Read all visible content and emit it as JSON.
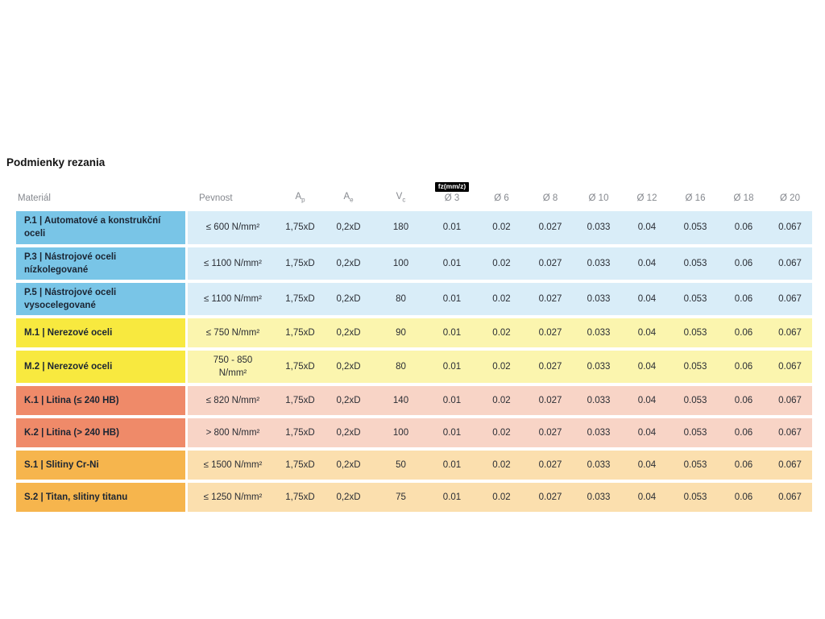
{
  "title": "Podmienky rezania",
  "colors": {
    "title_text": "#141414",
    "header_text": "#85888e",
    "material_text": "#1b2533",
    "value_text": "#2a2d34",
    "badge_bg": "#000000",
    "p_strong": "#79c5e7",
    "p_light": "#d9edf8",
    "m_strong": "#f8e93f",
    "m_light": "#fbf5ae",
    "k_strong": "#ef8a69",
    "k_light": "#f8d4c6",
    "s_strong": "#f6b54d",
    "s_light": "#fbdfae"
  },
  "table": {
    "headers": {
      "material": "Materiál",
      "pevnost": "Pevnost",
      "ap": {
        "base": "A",
        "sub": "p"
      },
      "ae": {
        "base": "A",
        "sub": "e"
      },
      "vc": {
        "base": "V",
        "sub": "c"
      },
      "fz_badge": "fz(mm/z)",
      "diameters": [
        "Ø 3",
        "Ø 6",
        "Ø 8",
        "Ø 10",
        "Ø 12",
        "Ø 16",
        "Ø 18",
        "Ø 20"
      ]
    },
    "rows": [
      {
        "group": "p",
        "material": "P.1 | Automatové a konstrukční oceli",
        "pevnost": "≤ 600 N/mm²",
        "ap": "1,75xD",
        "ae": "0,2xD",
        "vc": "180",
        "fz": [
          "0.01",
          "0.02",
          "0.027",
          "0.033",
          "0.04",
          "0.053",
          "0.06",
          "0.067"
        ]
      },
      {
        "group": "p",
        "material": "P.3 | Nástrojové oceli nízkolegované",
        "pevnost": "≤ 1100 N/mm²",
        "ap": "1,75xD",
        "ae": "0,2xD",
        "vc": "100",
        "fz": [
          "0.01",
          "0.02",
          "0.027",
          "0.033",
          "0.04",
          "0.053",
          "0.06",
          "0.067"
        ]
      },
      {
        "group": "p",
        "material": "P.5 | Nástrojové oceli vysocelegované",
        "pevnost": "≤ 1100 N/mm²",
        "ap": "1,75xD",
        "ae": "0,2xD",
        "vc": "80",
        "fz": [
          "0.01",
          "0.02",
          "0.027",
          "0.033",
          "0.04",
          "0.053",
          "0.06",
          "0.067"
        ]
      },
      {
        "group": "m",
        "material": "M.1 | Nerezové oceli",
        "pevnost": "≤ 750 N/mm²",
        "ap": "1,75xD",
        "ae": "0,2xD",
        "vc": "90",
        "fz": [
          "0.01",
          "0.02",
          "0.027",
          "0.033",
          "0.04",
          "0.053",
          "0.06",
          "0.067"
        ]
      },
      {
        "group": "m",
        "material": "M.2 | Nerezové oceli",
        "pevnost": "750 - 850\nN/mm²",
        "ap": "1,75xD",
        "ae": "0,2xD",
        "vc": "80",
        "fz": [
          "0.01",
          "0.02",
          "0.027",
          "0.033",
          "0.04",
          "0.053",
          "0.06",
          "0.067"
        ]
      },
      {
        "group": "k",
        "material": "K.1 | Litina (≤ 240 HB)",
        "pevnost": "≤ 820 N/mm²",
        "ap": "1,75xD",
        "ae": "0,2xD",
        "vc": "140",
        "fz": [
          "0.01",
          "0.02",
          "0.027",
          "0.033",
          "0.04",
          "0.053",
          "0.06",
          "0.067"
        ]
      },
      {
        "group": "k",
        "material": "K.2 | Litina (> 240 HB)",
        "pevnost": "> 800 N/mm²",
        "ap": "1,75xD",
        "ae": "0,2xD",
        "vc": "100",
        "fz": [
          "0.01",
          "0.02",
          "0.027",
          "0.033",
          "0.04",
          "0.053",
          "0.06",
          "0.067"
        ]
      },
      {
        "group": "s",
        "material": "S.1 | Slitiny Cr-Ni",
        "pevnost": "≤ 1500 N/mm²",
        "ap": "1,75xD",
        "ae": "0,2xD",
        "vc": "50",
        "fz": [
          "0.01",
          "0.02",
          "0.027",
          "0.033",
          "0.04",
          "0.053",
          "0.06",
          "0.067"
        ]
      },
      {
        "group": "s",
        "material": "S.2 | Titan, slitiny titanu",
        "pevnost": "≤ 1250 N/mm²",
        "ap": "1,75xD",
        "ae": "0,2xD",
        "vc": "75",
        "fz": [
          "0.01",
          "0.02",
          "0.027",
          "0.033",
          "0.04",
          "0.053",
          "0.06",
          "0.067"
        ]
      }
    ]
  }
}
